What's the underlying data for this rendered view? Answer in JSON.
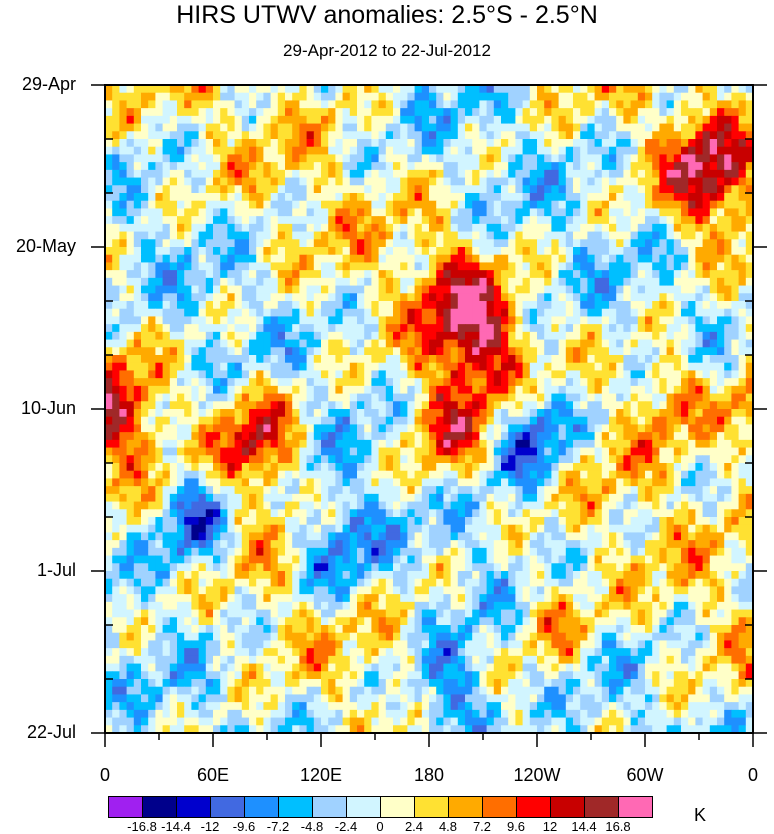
{
  "chart_data": {
    "type": "heatmap",
    "title": "HIRS UTWV anomalies: 2.5°S - 2.5°N",
    "subtitle": "29-Apr-2012 to 22-Jul-2012",
    "y_tick_labels": [
      "29-Apr",
      "20-May",
      "10-Jun",
      "1-Jul",
      "22-Jul"
    ],
    "x_tick_labels": [
      "0",
      "60E",
      "120E",
      "180",
      "120W",
      "60W",
      "0"
    ],
    "x_range_deg_east": [
      0,
      360
    ],
    "y_range_days": [
      0,
      84
    ],
    "colorbar_levels": [
      -16.8,
      -14.4,
      -12,
      -9.6,
      -7.2,
      -4.8,
      -2.4,
      0,
      2.4,
      4.8,
      7.2,
      9.6,
      12,
      14.4,
      16.8
    ],
    "colorbar_labels": [
      "-16.8",
      "-14.4",
      "-12",
      "-9.6",
      "-7.2",
      "-4.8",
      "-2.4",
      "0",
      "2.4",
      "4.8",
      "7.2",
      "9.6",
      "12",
      "14.4",
      "16.8"
    ],
    "colorbar_colors": [
      "#a020f0",
      "#00008b",
      "#0000cd",
      "#4169e1",
      "#1e90ff",
      "#00bfff",
      "#a0d2ff",
      "#d1f5ff",
      "#ffffc8",
      "#ffe132",
      "#ffaa00",
      "#ff6e00",
      "#ff0000",
      "#c80000",
      "#a02828",
      "#ff69b4"
    ],
    "units": "K",
    "anomaly_features": [
      {
        "lon": 335,
        "day": 12,
        "value": 14.0
      },
      {
        "lon": 195,
        "day": 27,
        "value": 9.0
      },
      {
        "lon": 210,
        "day": 34,
        "value": 12.0
      },
      {
        "lon": 5,
        "day": 43,
        "value": 11.0
      },
      {
        "lon": 85,
        "day": 46,
        "value": 13.0
      },
      {
        "lon": 190,
        "day": 45,
        "value": 10.0
      },
      {
        "lon": 315,
        "day": 40,
        "value": 8.0
      },
      {
        "lon": 238,
        "day": 45,
        "value": -13.0
      },
      {
        "lon": 50,
        "day": 56,
        "value": -12.0
      },
      {
        "lon": 190,
        "day": 80,
        "value": -12.0
      },
      {
        "lon": 250,
        "day": 70,
        "value": 7.0
      },
      {
        "lon": 130,
        "day": 60,
        "value": -9.0
      }
    ]
  }
}
